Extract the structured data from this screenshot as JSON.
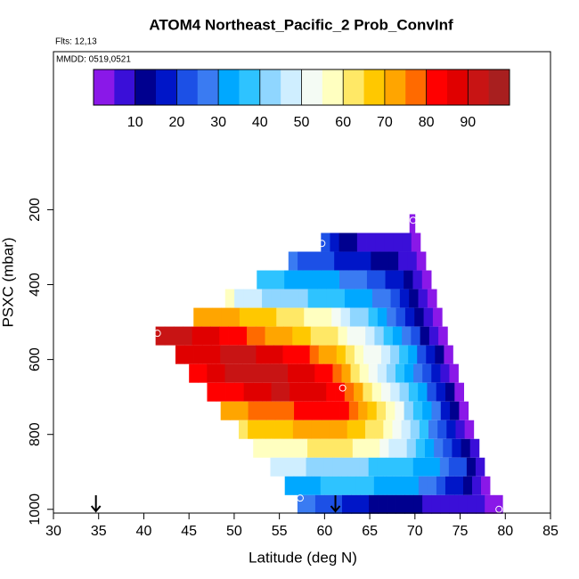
{
  "chart_data": {
    "type": "heatmap",
    "title": "ATOM4 Northeast_Pacific_2 Prob_ConvInf",
    "subtitle": "Flts: 12,13",
    "annotation": "MMDD: 0519,0521",
    "x_label": "Latitude (deg N)",
    "y_label": "PSXC (mbar)",
    "xlim": [
      30,
      85
    ],
    "xticks": [
      30,
      35,
      40,
      45,
      50,
      55,
      60,
      65,
      70,
      75,
      80,
      85
    ],
    "ylim": [
      1010,
      -222
    ],
    "yticks": [
      200,
      400,
      600,
      800,
      1000
    ],
    "colorbar_range": [
      0,
      100
    ],
    "colorbar_ticks": [
      10,
      20,
      30,
      40,
      50,
      60,
      70,
      80,
      90
    ],
    "colorbar_colors": [
      "#8a18e8",
      "#3a0fd8",
      "#00008f",
      "#0016c8",
      "#1c50e6",
      "#3a7bf2",
      "#00a8ff",
      "#2ec3ff",
      "#8fd6ff",
      "#cfeeff",
      "#f4fbf4",
      "#ffffc0",
      "#ffe866",
      "#ffc800",
      "#ffa500",
      "#ff6a00",
      "#ff0000",
      "#e00000",
      "#c81414",
      "#a81f1f"
    ],
    "rows": [
      {
        "pressure_range": [
          212,
          262
        ],
        "lat_range": [
          69.4,
          70.0
        ],
        "values": [
          4
        ]
      },
      {
        "pressure_range": [
          262,
          312
        ],
        "lat_range": [
          59.6,
          70.6
        ],
        "values": [
          20,
          17,
          14,
          11,
          9,
          9,
          8,
          8,
          7,
          6,
          4
        ]
      },
      {
        "pressure_range": [
          312,
          362
        ],
        "lat_range": [
          56.0,
          71.2
        ],
        "values": [
          26,
          24,
          23,
          21,
          20,
          18,
          17,
          16,
          15,
          14,
          12,
          10,
          8,
          6,
          4
        ]
      },
      {
        "pressure_range": [
          362,
          412
        ],
        "lat_range": [
          52.5,
          71.8
        ],
        "values": [
          37,
          36,
          35,
          34,
          34,
          33,
          32,
          31,
          30,
          28,
          27,
          25,
          23,
          21,
          18,
          15,
          12,
          8,
          4
        ]
      },
      {
        "pressure_range": [
          412,
          462
        ],
        "lat_range": [
          49.0,
          72.4
        ],
        "values": [
          56,
          48,
          46,
          45,
          44,
          43,
          42,
          41,
          40,
          39,
          38,
          37,
          36,
          34,
          32,
          30,
          28,
          25,
          22,
          18,
          14,
          9,
          4
        ]
      },
      {
        "pressure_range": [
          462,
          512
        ],
        "lat_range": [
          45.5,
          73.0
        ],
        "values": [
          74,
          73,
          72,
          71,
          70,
          69,
          68,
          66,
          65,
          63,
          62,
          60,
          58,
          56,
          55,
          52,
          48,
          44,
          40,
          36,
          32,
          28,
          23,
          18,
          13,
          8,
          4
        ]
      },
      {
        "pressure_range": [
          512,
          562
        ],
        "lat_range": [
          41.3,
          73.6
        ],
        "values": [
          93,
          92,
          91,
          90,
          89,
          88,
          86,
          84,
          82,
          80,
          78,
          76,
          74,
          72,
          70,
          68,
          66,
          64,
          62,
          60,
          57,
          54,
          50,
          46,
          42,
          37,
          32,
          26,
          20,
          14,
          9,
          4
        ]
      },
      {
        "pressure_range": [
          562,
          612
        ],
        "lat_range": [
          43.5,
          74.2
        ],
        "values": [
          86,
          85,
          86,
          88,
          89,
          90,
          90,
          91,
          90,
          89,
          88,
          86,
          84,
          82,
          80,
          77,
          74,
          70,
          66,
          62,
          58,
          54,
          50,
          45,
          40,
          35,
          30,
          24,
          17,
          10,
          4
        ]
      },
      {
        "pressure_range": [
          612,
          662
        ],
        "lat_range": [
          45.0,
          74.8
        ],
        "values": [
          82,
          83,
          85,
          88,
          90,
          91,
          91,
          92,
          92,
          91,
          90,
          89,
          88,
          86,
          84,
          80,
          76,
          70,
          64,
          58,
          52,
          47,
          42,
          37,
          32,
          27,
          21,
          15,
          9,
          4
        ]
      },
      {
        "pressure_range": [
          662,
          712
        ],
        "lat_range": [
          47.0,
          75.4
        ],
        "values": [
          80,
          81,
          82,
          84,
          86,
          88,
          89,
          90,
          90,
          89,
          88,
          87,
          86,
          84,
          80,
          76,
          70,
          64,
          58,
          52,
          46,
          41,
          36,
          30,
          24,
          17,
          10,
          4
        ]
      },
      {
        "pressure_range": [
          712,
          762
        ],
        "lat_range": [
          48.5,
          75.9
        ],
        "values": [
          70,
          72,
          74,
          76,
          77,
          78,
          78,
          79,
          80,
          81,
          82,
          82,
          81,
          80,
          76,
          72,
          67,
          62,
          56,
          50,
          44,
          38,
          32,
          25,
          18,
          10,
          4
        ]
      },
      {
        "pressure_range": [
          762,
          812
        ],
        "lat_range": [
          50.5,
          76.5
        ],
        "values": [
          64,
          65,
          66,
          67,
          68,
          69,
          70,
          70,
          71,
          71,
          72,
          70,
          68,
          66,
          64,
          62,
          58,
          53,
          47,
          41,
          35,
          29,
          23,
          16,
          9,
          4
        ]
      },
      {
        "pressure_range": [
          812,
          862
        ],
        "lat_range": [
          52.1,
          77.1
        ],
        "values": [
          55,
          56,
          57,
          58,
          58,
          59,
          60,
          60,
          61,
          61,
          60,
          59,
          58,
          56,
          53,
          49,
          45,
          41,
          37,
          33,
          29,
          24,
          18,
          12,
          6
        ]
      },
      {
        "pressure_range": [
          862,
          912
        ],
        "lat_range": [
          54.0,
          77.7
        ],
        "values": [
          46,
          46,
          45,
          45,
          44,
          44,
          43,
          42,
          42,
          41,
          40,
          39,
          38,
          37,
          36,
          35,
          34,
          32,
          30,
          27,
          24,
          20,
          14,
          8
        ]
      },
      {
        "pressure_range": [
          912,
          962
        ],
        "lat_range": [
          55.6,
          78.3
        ],
        "values": [
          30,
          32,
          33,
          34,
          35,
          35,
          36,
          36,
          35,
          35,
          34,
          33,
          32,
          31,
          30,
          28,
          25,
          22,
          19,
          15,
          11,
          7,
          4
        ]
      },
      {
        "pressure_range": [
          962,
          1012
        ],
        "lat_range": [
          57.0,
          79.7
        ],
        "values": [
          28,
          26,
          24,
          22,
          20,
          19,
          18,
          16,
          14,
          13,
          12,
          11,
          10,
          10,
          9,
          9,
          8,
          8,
          7,
          6,
          5,
          4,
          3
        ]
      }
    ],
    "circles": [
      {
        "lat": 69.8,
        "pressure": 228
      },
      {
        "lat": 59.7,
        "pressure": 290
      },
      {
        "lat": 41.5,
        "pressure": 530
      },
      {
        "lat": 62.0,
        "pressure": 676
      },
      {
        "lat": 57.3,
        "pressure": 970
      },
      {
        "lat": 79.3,
        "pressure": 1000
      }
    ],
    "arrows": [
      34.7,
      61.2
    ]
  }
}
